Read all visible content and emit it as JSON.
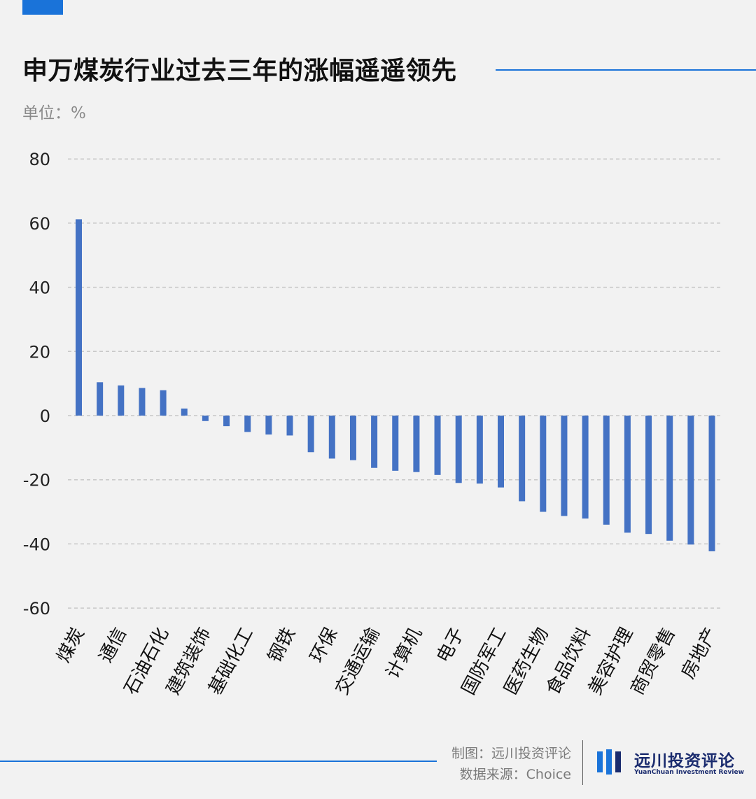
{
  "header": {
    "title": "申万煤炭行业过去三年的涨幅遥遥领先",
    "unit_label": "单位：%"
  },
  "footer": {
    "credit_chart": "制图：远川投资评论",
    "credit_source": "数据来源：Choice",
    "brand_cn": "远川投资评论",
    "brand_en": "YuanChuan Investment Review"
  },
  "colors": {
    "accent": "#1a73d9",
    "bar": "#4472c4",
    "brand": "#1a2b6e"
  },
  "chart_data": {
    "type": "bar",
    "title": "申万煤炭行业过去三年的涨幅遥遥领先",
    "xlabel": "",
    "ylabel": "",
    "unit": "%",
    "ylim": [
      -60,
      80
    ],
    "yticks": [
      80,
      60,
      40,
      20,
      0,
      -20,
      -40,
      -60
    ],
    "grid": true,
    "categories": [
      "煤炭",
      "",
      "通信",
      "",
      "石油石化",
      "",
      "建筑装饰",
      "",
      "基础化工",
      "",
      "钢铁",
      "",
      "环保",
      "",
      "交通运输",
      "",
      "计算机",
      "",
      "电子",
      "",
      "国防军工",
      "",
      "医药生物",
      "",
      "食品饮料",
      "",
      "美容护理",
      "",
      "商贸零售",
      "",
      "房地产"
    ],
    "values": [
      61.2,
      10.4,
      9.4,
      8.6,
      7.9,
      2.2,
      -1.7,
      -3.3,
      -5.1,
      -5.9,
      -6.2,
      -11.4,
      -13.4,
      -13.9,
      -16.3,
      -17.2,
      -17.6,
      -18.5,
      -21.0,
      -21.2,
      -22.4,
      -26.7,
      -30.0,
      -31.3,
      -32.1,
      -34.0,
      -36.5,
      -36.9,
      -39.0,
      -40.2,
      -42.3
    ]
  }
}
